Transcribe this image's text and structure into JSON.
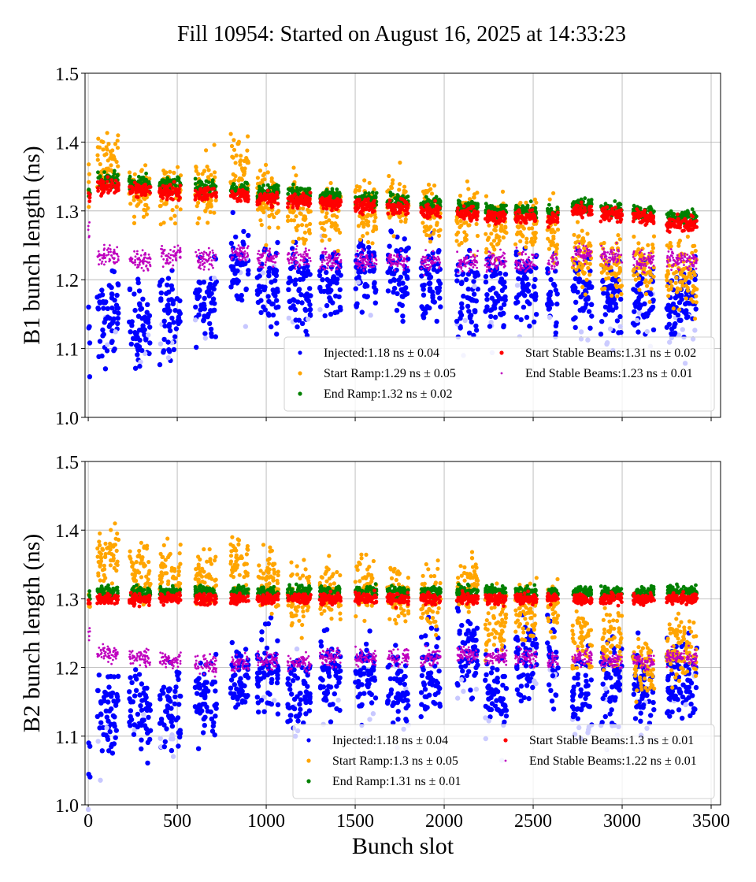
{
  "chart_data": [
    {
      "type": "scatter",
      "title": "Fill 10954: Started on August 16, 2025 at 14:33:23",
      "xlabel": "",
      "ylabel": "B1 bunch length (ns)",
      "xlim": [
        -18,
        3553
      ],
      "ylim": [
        1.0,
        1.5
      ],
      "xticks": [
        0,
        500,
        1000,
        1500,
        2000,
        2500,
        3000,
        3500
      ],
      "yticks": [
        "1.0",
        "1.1",
        "1.2",
        "1.3",
        "1.4",
        "1.5"
      ],
      "grid": true,
      "legend_placement": "lower-right",
      "trains": [
        [
          0,
          10
        ],
        [
          50,
          170
        ],
        [
          230,
          350
        ],
        [
          400,
          520
        ],
        [
          600,
          720
        ],
        [
          800,
          900
        ],
        [
          950,
          1070
        ],
        [
          1120,
          1250
        ],
        [
          1300,
          1420
        ],
        [
          1500,
          1620
        ],
        [
          1680,
          1800
        ],
        [
          1870,
          1980
        ],
        [
          2070,
          2190
        ],
        [
          2230,
          2350
        ],
        [
          2400,
          2520
        ],
        [
          2580,
          2640
        ],
        [
          2720,
          2830
        ],
        [
          2880,
          3000
        ],
        [
          3060,
          3180
        ],
        [
          3250,
          3420
        ]
      ],
      "series": [
        {
          "name": "Injected:1.18 ns ± 0.04",
          "color": "#0000ff",
          "spread": 0.03,
          "train_means": [
            1.1,
            1.15,
            1.13,
            1.15,
            1.17,
            1.22,
            1.19,
            1.18,
            1.19,
            1.21,
            1.21,
            1.2,
            1.18,
            1.18,
            1.19,
            1.18,
            1.19,
            1.17,
            1.18,
            1.17
          ]
        },
        {
          "name": "Start Ramp:1.29 ns ± 0.05",
          "color": "#ffa500",
          "spread": 0.022,
          "train_means": [
            1.35,
            1.37,
            1.33,
            1.32,
            1.33,
            1.36,
            1.32,
            1.3,
            1.3,
            1.3,
            1.31,
            1.3,
            1.29,
            1.28,
            1.28,
            1.27,
            1.24,
            1.22,
            1.22,
            1.21
          ]
        },
        {
          "name": "End Ramp:1.32 ns ± 0.02",
          "color": "#008000",
          "spread": 0.005,
          "train_means": [
            1.33,
            1.345,
            1.34,
            1.338,
            1.334,
            1.332,
            1.328,
            1.325,
            1.322,
            1.318,
            1.314,
            1.31,
            1.306,
            1.302,
            1.3,
            1.296,
            1.308,
            1.302,
            1.298,
            1.29
          ]
        },
        {
          "name": "Start Stable Beams:1.31 ns ± 0.02",
          "color": "#ff0000",
          "spread": 0.005,
          "train_means": [
            1.32,
            1.335,
            1.33,
            1.328,
            1.324,
            1.322,
            1.318,
            1.315,
            1.312,
            1.308,
            1.304,
            1.3,
            1.296,
            1.292,
            1.29,
            1.288,
            1.3,
            1.295,
            1.29,
            1.28
          ]
        },
        {
          "name": "End Stable Beams:1.23 ns ± 0.01",
          "color": "#bf00bf",
          "spread": 0.007,
          "train_means": [
            1.27,
            1.235,
            1.23,
            1.235,
            1.23,
            1.24,
            1.23,
            1.232,
            1.228,
            1.228,
            1.228,
            1.226,
            1.226,
            1.228,
            1.226,
            1.225,
            1.238,
            1.232,
            1.228,
            1.228
          ]
        }
      ]
    },
    {
      "type": "scatter",
      "xlabel": "Bunch slot",
      "ylabel": "B2 bunch length (ns)",
      "xlim": [
        -18,
        3553
      ],
      "ylim": [
        1.0,
        1.5
      ],
      "xticks": [
        0,
        500,
        1000,
        1500,
        2000,
        2500,
        3000,
        3500
      ],
      "xtick_labels": [
        "0",
        "500",
        "1000",
        "1500",
        "2000",
        "2500",
        "3000",
        "3500"
      ],
      "yticks": [
        "1.0",
        "1.1",
        "1.2",
        "1.3",
        "1.4",
        "1.5"
      ],
      "grid": true,
      "legend_placement": "lower-right",
      "series": [
        {
          "name": "Injected:1.18 ns ± 0.04",
          "color": "#0000ff",
          "spread": 0.03,
          "train_means": [
            1.07,
            1.14,
            1.14,
            1.14,
            1.15,
            1.19,
            1.19,
            1.16,
            1.19,
            1.19,
            1.17,
            1.19,
            1.22,
            1.16,
            1.21,
            1.2,
            1.16,
            1.18,
            1.17,
            1.18
          ]
        },
        {
          "name": "Start Ramp:1.3 ns ± 0.05",
          "color": "#ffa500",
          "spread": 0.022,
          "train_means": [
            1.3,
            1.36,
            1.34,
            1.34,
            1.33,
            1.35,
            1.33,
            1.31,
            1.31,
            1.32,
            1.3,
            1.3,
            1.32,
            1.27,
            1.28,
            1.28,
            1.24,
            1.24,
            1.2,
            1.23
          ]
        },
        {
          "name": "End Ramp:1.31 ns ± 0.01",
          "color": "#008000",
          "spread": 0.004,
          "train_means": [
            1.305,
            1.31,
            1.31,
            1.31,
            1.31,
            1.31,
            1.31,
            1.31,
            1.31,
            1.31,
            1.31,
            1.31,
            1.31,
            1.31,
            1.31,
            1.31,
            1.31,
            1.31,
            1.31,
            1.312
          ]
        },
        {
          "name": "Start Stable Beams:1.3 ns ± 0.01",
          "color": "#ff0000",
          "spread": 0.004,
          "train_means": [
            1.295,
            1.3,
            1.3,
            1.3,
            1.3,
            1.3,
            1.3,
            1.3,
            1.3,
            1.3,
            1.3,
            1.3,
            1.3,
            1.3,
            1.3,
            1.3,
            1.3,
            1.3,
            1.3,
            1.3
          ]
        },
        {
          "name": "End Stable Beams:1.22 ns ± 0.01",
          "color": "#bf00bf",
          "spread": 0.006,
          "train_means": [
            1.25,
            1.222,
            1.215,
            1.21,
            1.205,
            1.205,
            1.21,
            1.205,
            1.215,
            1.215,
            1.215,
            1.215,
            1.22,
            1.215,
            1.215,
            1.21,
            1.215,
            1.21,
            1.21,
            1.215
          ]
        }
      ]
    }
  ]
}
